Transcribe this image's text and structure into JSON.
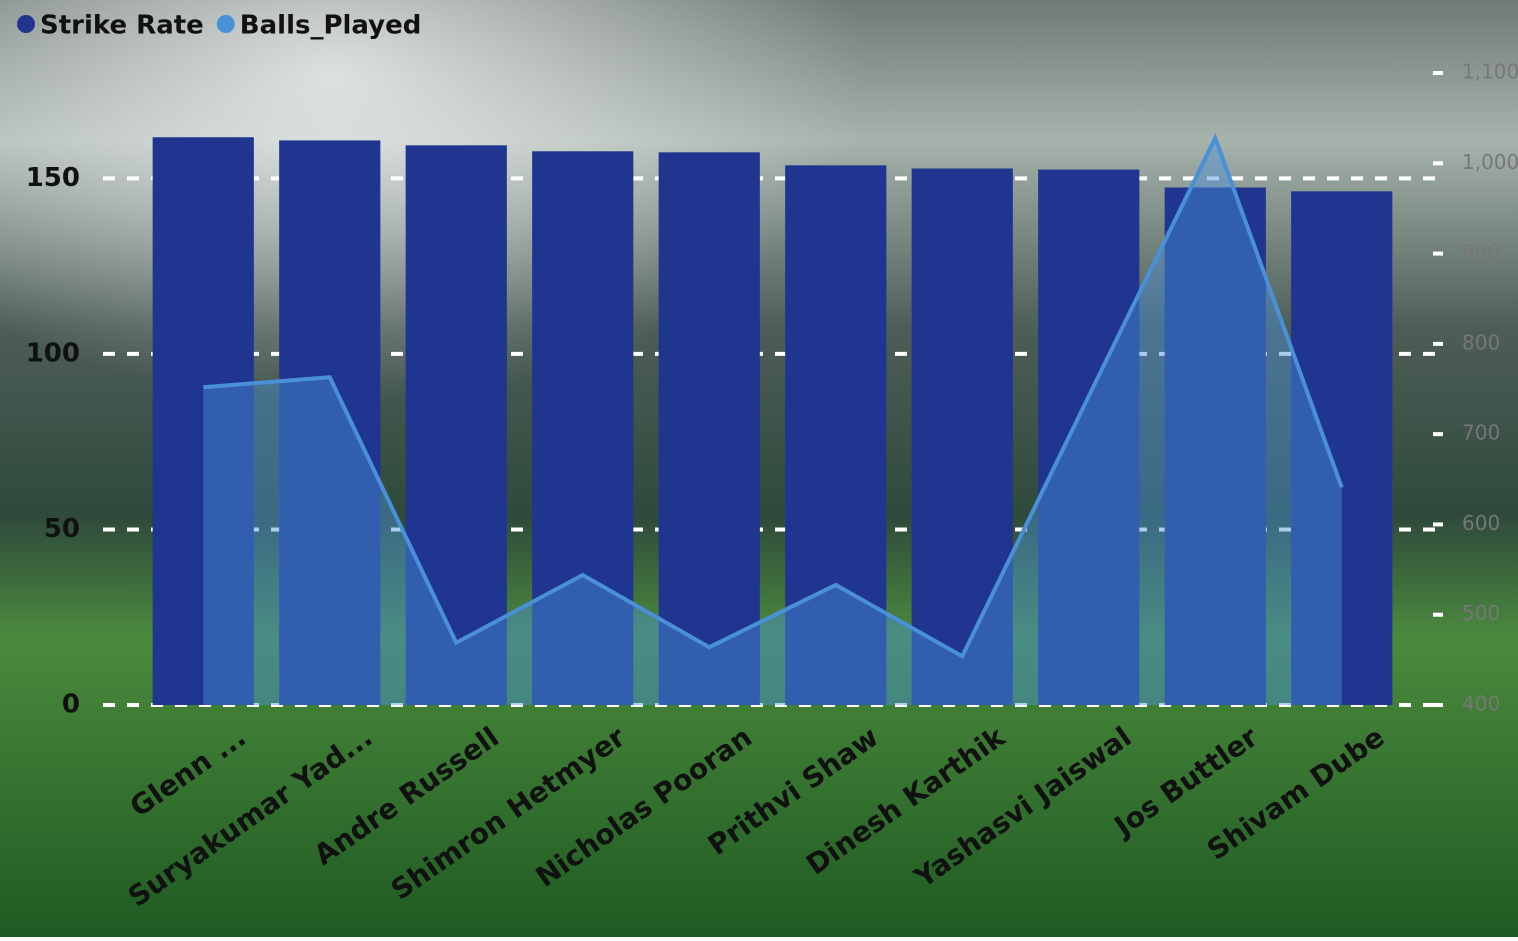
{
  "chart_data": {
    "type": "bar-area",
    "categories": [
      "Glenn ...",
      "Suryakumar Yad...",
      "Andre Russell",
      "Shimron Hetmyer",
      "Nicholas Pooran",
      "Prithvi Shaw",
      "Dinesh Karthik",
      "Yashasvi Jaiswal",
      "Jos Buttler",
      "Shivam Dube"
    ],
    "series": [
      {
        "name": "Strike Rate",
        "color": "#1f358f",
        "values": [
          161.7,
          160.8,
          159.4,
          157.7,
          157.4,
          153.7,
          152.8,
          152.5,
          147.4,
          146.3
        ]
      },
      {
        "name": "Balls_Played",
        "color": "#4a90d9",
        "axis": "y2",
        "values": [
          752,
          763,
          469,
          544,
          464,
          533,
          454,
          742,
          1028,
          641
        ]
      }
    ],
    "ylim": [
      0,
      180
    ],
    "yticks": [
      0,
      50,
      100,
      150
    ],
    "y2lim": [
      400,
      1100
    ],
    "y2ticks": [
      400,
      500,
      600,
      700,
      800,
      900,
      {
        "value": 1000,
        "label": "1,000"
      },
      {
        "value": 1100,
        "label": "1,100"
      }
    ],
    "grid": true
  }
}
